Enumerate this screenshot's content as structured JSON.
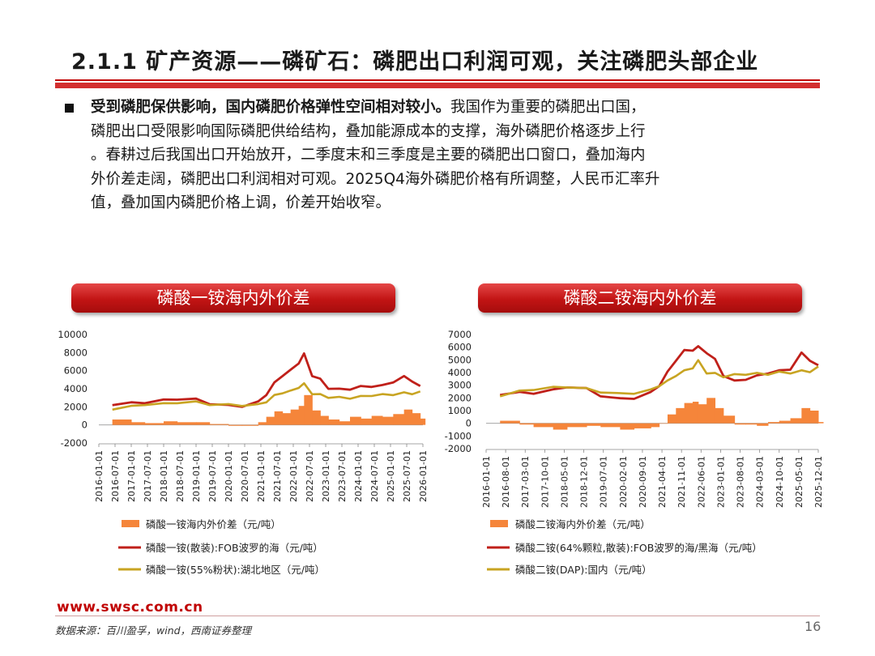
{
  "title": "2.1.1 矿产资源——磷矿石：磷肥出口利润可观，关注磷肥头部企业",
  "paragraph": {
    "lead": "受到磷肥保供影响，国内磷肥价格弹性空间相对较小。",
    "lines": [
      "我国作为重要的磷肥出口国，",
      "磷肥出口受限影响国际磷肥供给结构，叠加能源成本的支撑，海外磷肥价格逐步上行",
      "。春耕过后我国出口开始放开，二季度末和三季度是主要的磷肥出口窗口，叠加海内",
      "外价差走阔，磷肥出口利润相对可观。2025Q4海外磷肥价格有所调整，人民币汇率升",
      "值，叠加国内磷肥价格上调，价差开始收窄。"
    ]
  },
  "colors": {
    "accent": "#c00000",
    "spread": "#f5853a",
    "fob": "#c0201a",
    "domestic": "#c8a422"
  },
  "footer": {
    "url": "www.swsc.com.cn",
    "source": "数据来源：百川盈孚，wind，西南证券整理",
    "page": "16"
  },
  "chart_data": [
    {
      "type": "line",
      "title": "磷酸一铵海内外价差",
      "ylim": [
        -2000,
        10000
      ],
      "yticks": [
        "10000",
        "8000",
        "6000",
        "4000",
        "2000",
        "0",
        "-2000"
      ],
      "ytick_values": [
        10000,
        8000,
        6000,
        4000,
        2000,
        0,
        -2000
      ],
      "x_range": [
        "2016-01-01",
        "2026-01-01"
      ],
      "xticks": [
        "2016-01-01",
        "2016-07-01",
        "2017-01-01",
        "2017-07-01",
        "2018-01-01",
        "2018-07-01",
        "2019-01-01",
        "2019-07-01",
        "2020-01-01",
        "2020-07-01",
        "2021-01-01",
        "2021-07-01",
        "2022-01-01",
        "2022-07-01",
        "2023-01-01",
        "2023-07-01",
        "2024-01-01",
        "2024-07-01",
        "2025-01-01",
        "2025-07-01",
        "2026-01-01"
      ],
      "legend": [
        "磷酸一铵海内外价差（元/吨）",
        "磷酸一铵(散装):FOB波罗的海（元/吨）",
        "磷酸一铵(55%粉状):湖北地区（元/吨）"
      ],
      "series": [
        {
          "name": "磷酸一铵海内外价差（元/吨）",
          "kind": "area",
          "x": [
            "2016-06",
            "2017-01",
            "2017-06",
            "2018-01",
            "2018-06",
            "2019-01",
            "2019-06",
            "2020-01",
            "2020-06",
            "2020-12",
            "2021-03",
            "2021-06",
            "2021-09",
            "2021-12",
            "2022-03",
            "2022-05",
            "2022-08",
            "2022-11",
            "2023-02",
            "2023-06",
            "2023-10",
            "2024-02",
            "2024-06",
            "2024-10",
            "2025-02",
            "2025-06",
            "2025-09",
            "2025-12"
          ],
          "y": [
            600,
            300,
            200,
            400,
            300,
            300,
            100,
            -100,
            -100,
            300,
            900,
            1500,
            1300,
            1700,
            2100,
            3300,
            1600,
            1000,
            600,
            400,
            900,
            700,
            1000,
            900,
            1200,
            1700,
            1300,
            700
          ]
        },
        {
          "name": "磷酸一铵(散装):FOB波罗的海（元/吨）",
          "kind": "line",
          "x": [
            "2016-06",
            "2017-01",
            "2017-06",
            "2018-01",
            "2018-06",
            "2019-01",
            "2019-06",
            "2020-01",
            "2020-06",
            "2020-12",
            "2021-03",
            "2021-06",
            "2021-09",
            "2021-12",
            "2022-03",
            "2022-05",
            "2022-08",
            "2022-11",
            "2023-02",
            "2023-06",
            "2023-10",
            "2024-02",
            "2024-06",
            "2024-10",
            "2025-02",
            "2025-06",
            "2025-09",
            "2025-12"
          ],
          "y": [
            2300,
            2400,
            2500,
            2700,
            2900,
            2800,
            2400,
            2100,
            2100,
            2500,
            3400,
            4600,
            5500,
            6000,
            6900,
            7800,
            5500,
            5000,
            4100,
            3900,
            4000,
            4200,
            4300,
            4300,
            4800,
            5300,
            4900,
            4200
          ]
        },
        {
          "name": "磷酸一铵(55%粉状):湖北地区（元/吨）",
          "kind": "line",
          "x": [
            "2016-06",
            "2017-01",
            "2017-06",
            "2018-01",
            "2018-06",
            "2019-01",
            "2019-06",
            "2020-01",
            "2020-06",
            "2020-12",
            "2021-03",
            "2021-06",
            "2021-09",
            "2021-12",
            "2022-03",
            "2022-05",
            "2022-08",
            "2022-11",
            "2023-02",
            "2023-06",
            "2023-10",
            "2024-02",
            "2024-06",
            "2024-10",
            "2025-02",
            "2025-06",
            "2025-09",
            "2025-12"
          ],
          "y": [
            1800,
            2000,
            2300,
            2300,
            2500,
            2500,
            2300,
            2200,
            2200,
            2200,
            2600,
            3200,
            3600,
            3700,
            4200,
            4500,
            3500,
            3300,
            3100,
            3000,
            3000,
            3100,
            3300,
            3300,
            3400,
            3500,
            3500,
            3600
          ]
        }
      ]
    },
    {
      "type": "line",
      "title": "磷酸二铵海内外价差",
      "ylim": [
        -2000,
        7000
      ],
      "yticks": [
        "7000",
        "6000",
        "5000",
        "4000",
        "3000",
        "2000",
        "1000",
        "0",
        "-1000",
        "-2000"
      ],
      "ytick_values": [
        7000,
        6000,
        5000,
        4000,
        3000,
        2000,
        1000,
        0,
        -1000,
        -2000
      ],
      "x_range": [
        "2016-01-01",
        "2025-12-01"
      ],
      "xticks": [
        "2016-01-01",
        "2016-08-01",
        "2017-03-01",
        "2017-10-01",
        "2018-05-01",
        "2018-12-01",
        "2019-07-01",
        "2020-02-01",
        "2020-09-01",
        "2021-04-01",
        "2021-11-01",
        "2022-06-01",
        "2023-01-01",
        "2023-08-01",
        "2024-03-01",
        "2024-10-01",
        "2025-05-01",
        "2025-12-01"
      ],
      "legend": [
        "磷酸二铵海内外价差（元/吨）",
        "磷酸二铵(64%颗粒,散装):FOB波罗的海/黑海（元/吨）",
        "磷酸二铵(DAP):国内（元/吨）"
      ],
      "series": [
        {
          "name": "磷酸二铵海内外价差（元/吨）",
          "kind": "area",
          "x": [
            "2016-06",
            "2017-01",
            "2017-06",
            "2018-01",
            "2018-06",
            "2019-01",
            "2019-06",
            "2020-01",
            "2020-06",
            "2020-12",
            "2021-03",
            "2021-06",
            "2021-09",
            "2021-12",
            "2022-03",
            "2022-05",
            "2022-08",
            "2022-11",
            "2023-02",
            "2023-06",
            "2023-10",
            "2024-02",
            "2024-06",
            "2024-10",
            "2025-02",
            "2025-06",
            "2025-09",
            "2025-12"
          ],
          "y": [
            200,
            -100,
            -300,
            -500,
            -300,
            -200,
            -300,
            -500,
            -400,
            -300,
            0,
            700,
            1200,
            1600,
            1700,
            1500,
            2000,
            1200,
            600,
            -100,
            -100,
            -200,
            100,
            200,
            400,
            1200,
            1000,
            100
          ]
        },
        {
          "name": "磷酸二铵(64%颗粒,散装):FOB波罗的海/黑海（元/吨）",
          "kind": "line",
          "x": [
            "2016-06",
            "2017-01",
            "2017-06",
            "2018-01",
            "2018-06",
            "2019-01",
            "2019-06",
            "2020-01",
            "2020-06",
            "2020-12",
            "2021-03",
            "2021-06",
            "2021-09",
            "2021-12",
            "2022-03",
            "2022-05",
            "2022-08",
            "2022-11",
            "2023-02",
            "2023-06",
            "2023-10",
            "2024-02",
            "2024-06",
            "2024-10",
            "2025-02",
            "2025-06",
            "2025-09",
            "2025-12"
          ],
          "y": [
            2300,
            2400,
            2400,
            2600,
            2900,
            2700,
            2200,
            1900,
            2000,
            2400,
            3000,
            4000,
            5000,
            5700,
            5800,
            6000,
            5600,
            5000,
            3800,
            3300,
            3500,
            3700,
            4000,
            4100,
            4300,
            5500,
            5000,
            4500
          ]
        },
        {
          "name": "磷酸二铵(DAP):国内（元/吨）",
          "kind": "line",
          "x": [
            "2016-06",
            "2017-01",
            "2017-06",
            "2018-01",
            "2018-06",
            "2019-01",
            "2019-06",
            "2020-01",
            "2020-06",
            "2020-12",
            "2021-03",
            "2021-06",
            "2021-09",
            "2021-12",
            "2022-03",
            "2022-05",
            "2022-08",
            "2022-11",
            "2023-02",
            "2023-06",
            "2023-10",
            "2024-02",
            "2024-06",
            "2024-10",
            "2025-02",
            "2025-06",
            "2025-09",
            "2025-12"
          ],
          "y": [
            2200,
            2500,
            2700,
            2800,
            2900,
            2700,
            2500,
            2300,
            2400,
            2600,
            3000,
            3300,
            3800,
            4100,
            4400,
            4900,
            4000,
            3900,
            3700,
            3800,
            3900,
            3900,
            3900,
            4000,
            4000,
            4100,
            4100,
            4400
          ]
        }
      ]
    }
  ]
}
